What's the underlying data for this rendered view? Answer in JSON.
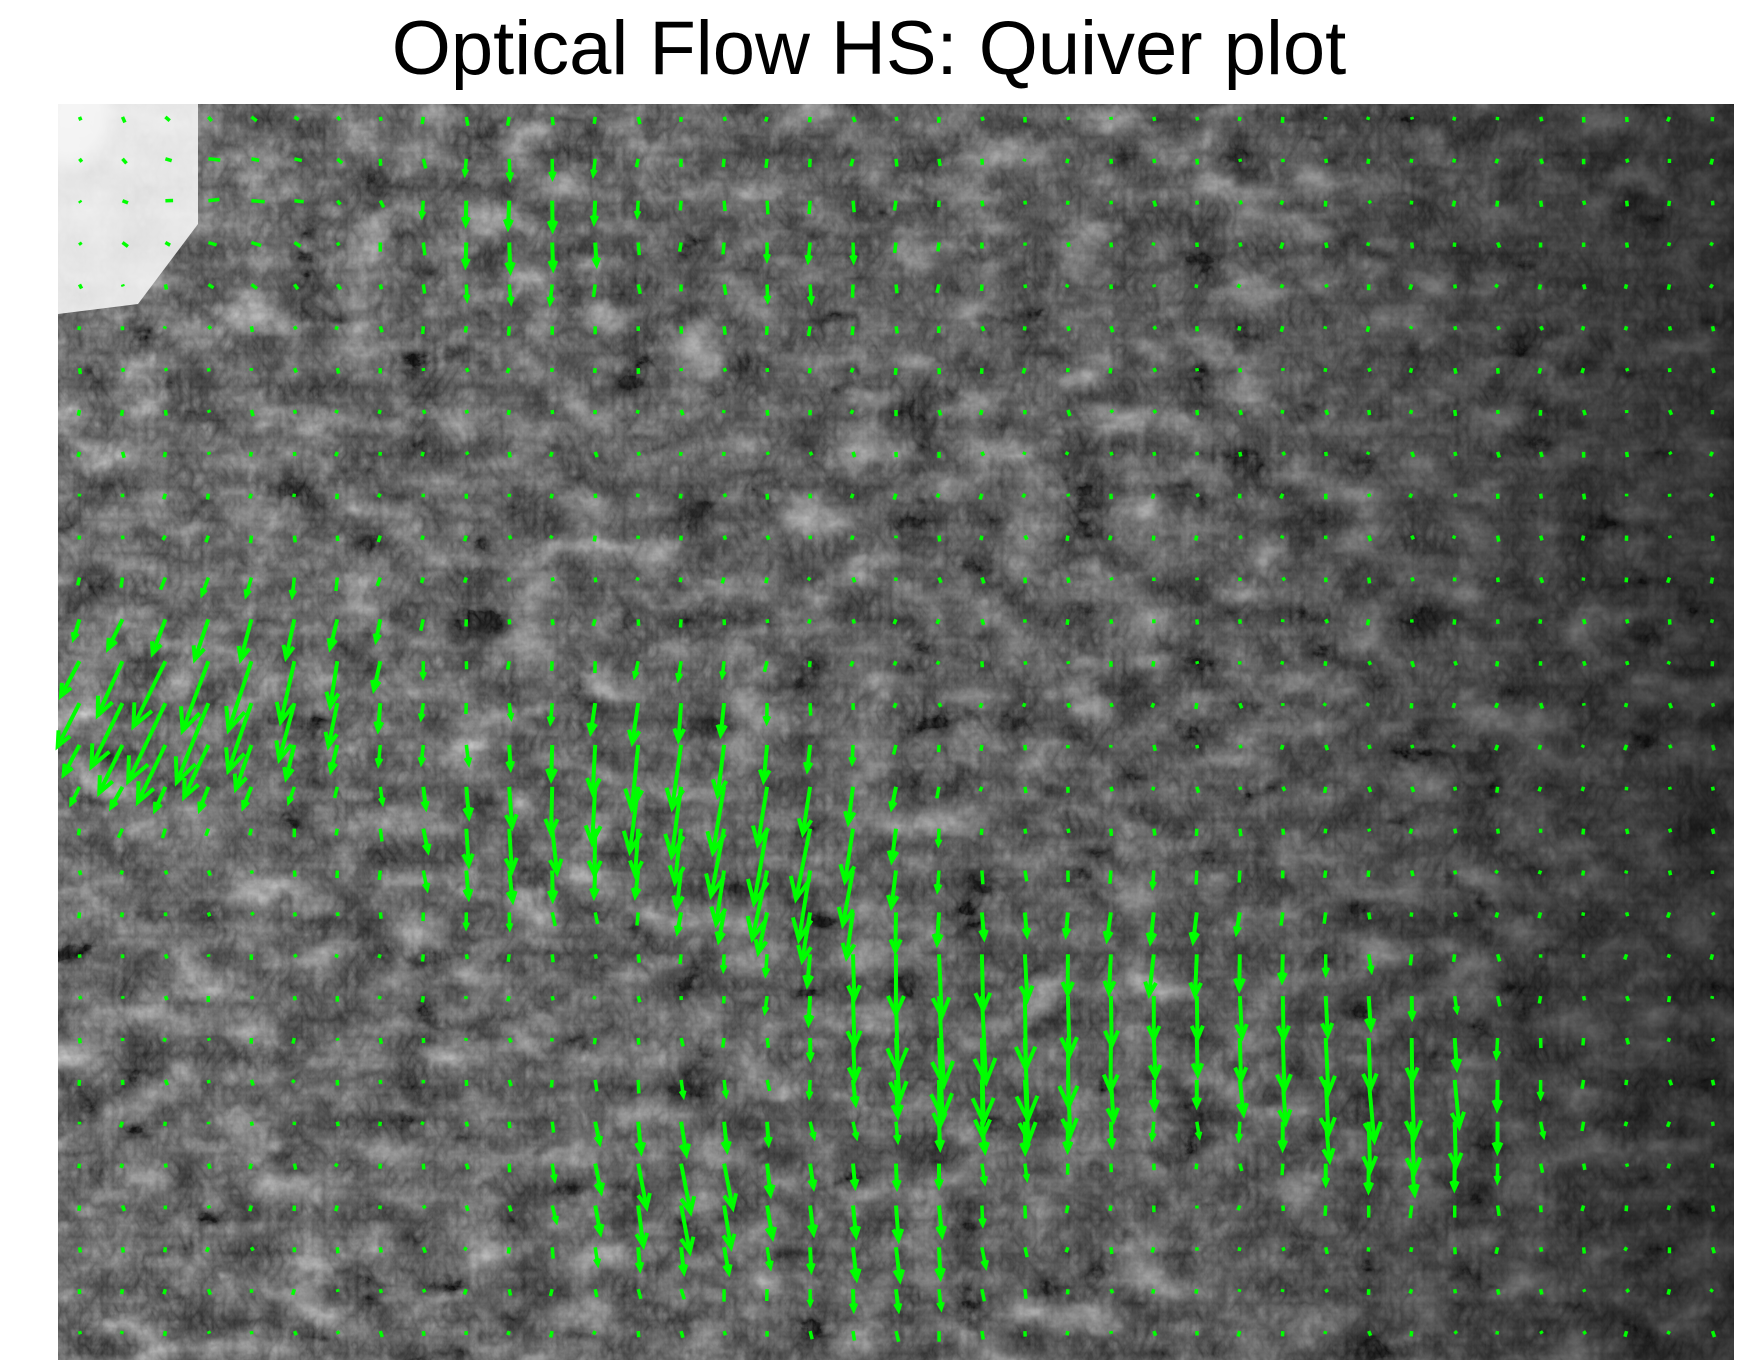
{
  "figure": {
    "title": "Optical Flow HS: Quiver plot"
  },
  "background_image": {
    "description_tone": "grayscale",
    "icon": "forest-foliage-photo"
  },
  "quiver": {
    "arrow_color": "#00ff00",
    "grid_columns": 39,
    "grid_rows": 30,
    "units": "pixels per frame"
  },
  "chart_data": {
    "type": "quiver",
    "title": "Optical Flow HS: Quiver plot",
    "xlabel": "",
    "ylabel": "",
    "grid": false,
    "legend": "none",
    "color": "#00ff00",
    "flow_regions": [
      {
        "center": [
          0.06,
          0.48
        ],
        "u": -5.0,
        "v": 9.0,
        "strength": 1.0
      },
      {
        "center": [
          0.14,
          0.46
        ],
        "u": -1.5,
        "v": 8.0,
        "strength": 0.8
      },
      {
        "center": [
          0.27,
          0.58
        ],
        "u": 1.0,
        "v": 7.0,
        "strength": 0.7
      },
      {
        "center": [
          0.36,
          0.53
        ],
        "u": -1.2,
        "v": 9.0,
        "strength": 0.9
      },
      {
        "center": [
          0.44,
          0.6
        ],
        "u": -2.0,
        "v": 9.5,
        "strength": 1.0
      },
      {
        "center": [
          0.52,
          0.72
        ],
        "u": 0.5,
        "v": 10.0,
        "strength": 1.0
      },
      {
        "center": [
          0.59,
          0.76
        ],
        "u": 0.3,
        "v": 8.0,
        "strength": 0.9
      },
      {
        "center": [
          0.37,
          0.86
        ],
        "u": 1.5,
        "v": 8.0,
        "strength": 0.8
      },
      {
        "center": [
          0.5,
          0.9
        ],
        "u": 1.0,
        "v": 7.0,
        "strength": 0.6
      },
      {
        "center": [
          0.66,
          0.68
        ],
        "u": -0.8,
        "v": 6.0,
        "strength": 0.7
      },
      {
        "center": [
          0.74,
          0.75
        ],
        "u": 0.6,
        "v": 7.0,
        "strength": 0.8
      },
      {
        "center": [
          0.81,
          0.8
        ],
        "u": 0.5,
        "v": 8.0,
        "strength": 0.8
      },
      {
        "center": [
          0.1,
          0.08
        ],
        "u": 3.0,
        "v": -1.0,
        "strength": 0.6
      },
      {
        "center": [
          0.28,
          0.1
        ],
        "u": 0.0,
        "v": 6.0,
        "strength": 0.6
      },
      {
        "center": [
          0.45,
          0.12
        ],
        "u": 0.0,
        "v": 4.0,
        "strength": 0.5
      }
    ]
  }
}
